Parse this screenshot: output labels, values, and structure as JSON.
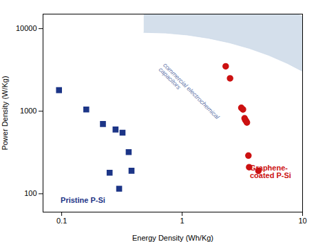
{
  "chart_data": {
    "type": "scatter",
    "xlabel": "Energy Density (Wh/Kg)",
    "ylabel": "Power Density (W/Kg)",
    "log": true,
    "xlim": [
      0.07,
      10
    ],
    "ylim": [
      60,
      15000
    ],
    "xticks": [
      0.1,
      1,
      10
    ],
    "yticks": [
      100,
      1000,
      10000
    ],
    "series": [
      {
        "color": "#1c3587",
        "marker": "square",
        "x": [
          0.095,
          0.16,
          0.22,
          0.28,
          0.32,
          0.36,
          0.38,
          0.25,
          0.3
        ],
        "y": [
          1800,
          1050,
          700,
          600,
          550,
          320,
          190,
          180,
          115
        ]
      },
      {
        "color": "#cc1111",
        "marker": "circle",
        "x": [
          2.3,
          2.5,
          3.1,
          3.2,
          3.3,
          3.35,
          3.4,
          3.45,
          3.55,
          3.6,
          4.3
        ],
        "y": [
          3500,
          2500,
          1100,
          1050,
          820,
          780,
          760,
          730,
          290,
          210,
          190
        ]
      }
    ],
    "annotations": [
      {
        "text": "Pristine P-Si",
        "x": 0.098,
        "y": 78,
        "color": "#1c3587"
      },
      {
        "text": "Graphene-\ncoated P-Si",
        "x": 3.65,
        "y": 155,
        "color": "#cc1111"
      }
    ],
    "region": {
      "label": "commercial electrochemical\ncapacitors",
      "label_x": 0.68,
      "label_y": 3500,
      "label_color": "#6677aa",
      "color": "#cdd9e8",
      "x": [
        0.48,
        0.7286,
        1.1022,
        1.6572,
        2.4684,
        3.63,
        5.259,
        7.479,
        10,
        10,
        9.904,
        9.0,
        0.48
      ],
      "y": [
        9000,
        8837,
        8369,
        7645,
        6742,
        5747,
        4739,
        3786,
        3037,
        14112,
        14191,
        15000,
        15000
      ]
    }
  }
}
